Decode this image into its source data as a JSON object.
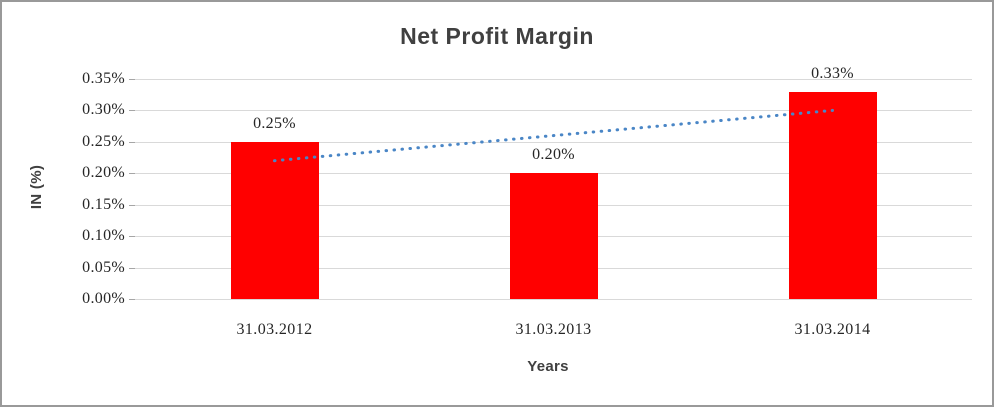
{
  "window": {
    "background": "#ffffff",
    "border_color": "#999999"
  },
  "chart_data": {
    "type": "bar",
    "title": "Net Profit Margin",
    "xlabel": "Years",
    "ylabel": "IN (%)",
    "categories": [
      "31.03.2012",
      "31.03.2013",
      "31.03.2014"
    ],
    "values": [
      0.25,
      0.2,
      0.33
    ],
    "data_labels": [
      "0.25%",
      "0.20%",
      "0.33%"
    ],
    "ylim": [
      0,
      0.35
    ],
    "ytick_step": 0.05,
    "ytick_labels": [
      "0.00%",
      "0.05%",
      "0.10%",
      "0.15%",
      "0.20%",
      "0.25%",
      "0.30%",
      "0.35%"
    ],
    "grid": true,
    "grid_color": "#d9d9d9",
    "bar_color": "#ff0000",
    "legend": "none",
    "trendline": {
      "type": "linear",
      "style": "dotted",
      "color": "#4a86c6"
    },
    "title_color": "#404040",
    "axis_title_color": "#404040",
    "tick_label_color": "#262626"
  }
}
